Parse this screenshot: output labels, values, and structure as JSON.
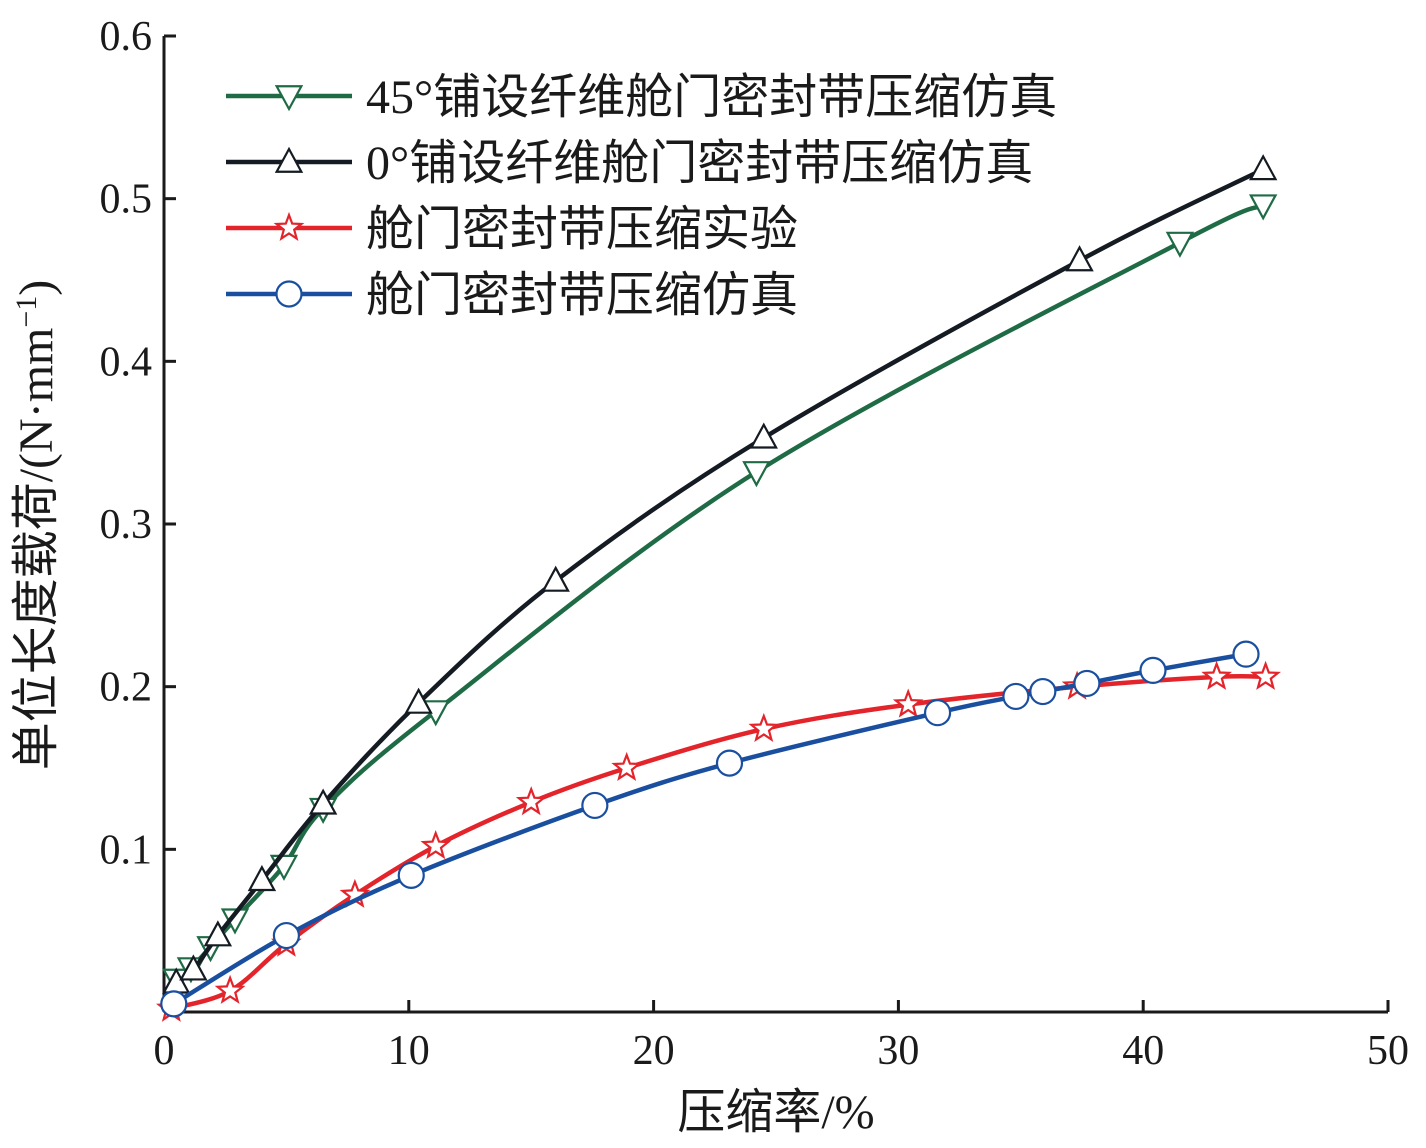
{
  "chart_data": {
    "type": "line",
    "title": "",
    "xlabel": "压缩率/%",
    "ylabel": "单位长度载荷/(N·mm",
    "ylabel_sup": "−1",
    "ylabel_close": ")",
    "xlim": [
      0,
      50
    ],
    "ylim": [
      0,
      0.6
    ],
    "xticks": [
      0,
      10,
      20,
      30,
      40,
      50
    ],
    "xtick_labels": [
      "0",
      "10",
      "20",
      "30",
      "40",
      "50"
    ],
    "yticks": [
      0.1,
      0.2,
      0.3,
      0.4,
      0.5,
      0.6
    ],
    "ytick_labels": [
      "0.1",
      "0.2",
      "0.3",
      "0.4",
      "0.5",
      "0.6"
    ],
    "grid": false,
    "legend_position": "top-left",
    "series": [
      {
        "name": "45°铺设纤维舱门密封带压缩仿真",
        "color": "#1f6b45",
        "marker": "triangle-down",
        "x": [
          0.5,
          1.1,
          1.9,
          2.9,
          4.9,
          6.5,
          11.1,
          24.2,
          41.5,
          44.9
        ],
        "y": [
          0.02,
          0.027,
          0.04,
          0.057,
          0.09,
          0.125,
          0.185,
          0.332,
          0.473,
          0.496
        ]
      },
      {
        "name": "0°铺设纤维舱门密封带压缩仿真",
        "color": "#151b22",
        "marker": "triangle-up",
        "x": [
          0.5,
          1.2,
          2.2,
          4.0,
          6.5,
          10.4,
          16.0,
          24.5,
          37.4,
          44.9
        ],
        "y": [
          0.018,
          0.026,
          0.047,
          0.081,
          0.128,
          0.19,
          0.265,
          0.353,
          0.462,
          0.518
        ]
      },
      {
        "name": "舱门密封带压缩实验",
        "color": "#e3242b",
        "marker": "star",
        "x": [
          0.3,
          2.7,
          5.0,
          7.8,
          11.1,
          15.0,
          18.9,
          24.5,
          30.4,
          37.3,
          43.0,
          45.0
        ],
        "y": [
          0.002,
          0.013,
          0.042,
          0.072,
          0.102,
          0.129,
          0.15,
          0.174,
          0.189,
          0.2,
          0.206,
          0.206
        ]
      },
      {
        "name": "舱门密封带压缩仿真",
        "color": "#1a4fa0",
        "marker": "circle",
        "x": [
          0.4,
          5.0,
          10.1,
          17.6,
          23.1,
          31.6,
          34.8,
          35.9,
          37.7,
          40.4,
          44.2
        ],
        "y": [
          0.005,
          0.047,
          0.084,
          0.127,
          0.153,
          0.184,
          0.194,
          0.197,
          0.202,
          0.21,
          0.22
        ]
      }
    ]
  }
}
